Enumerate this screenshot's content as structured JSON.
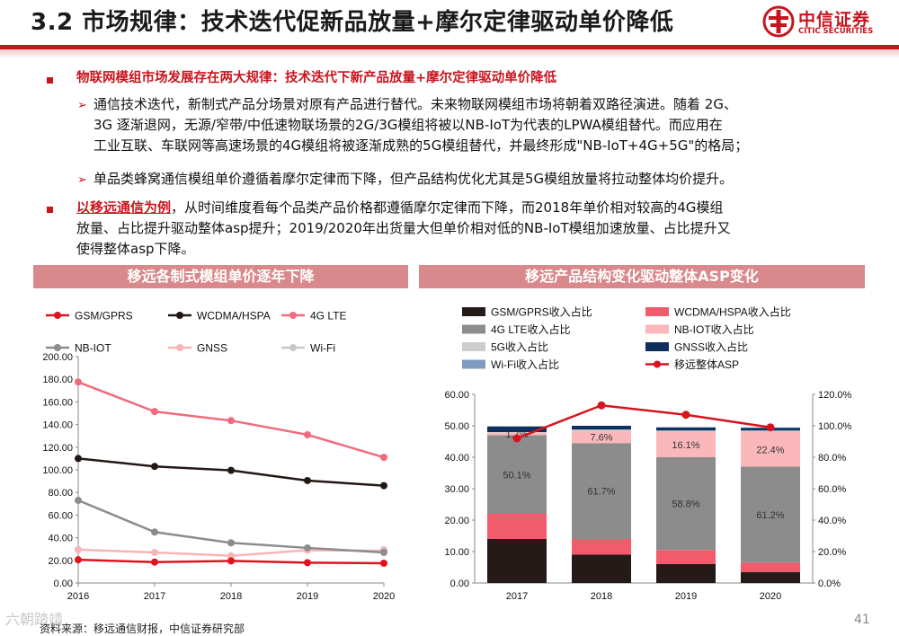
{
  "header": {
    "title": "3.2 市场规律：技术迭代促新品放量+摩尔定律驱动单价降低",
    "logo_cn": "中信证券",
    "logo_en": "CITIC SECURITIES"
  },
  "body": {
    "p1": "物联网模组市场发展存在两大规律：技术迭代下新产品放量+摩尔定律驱动单价降低",
    "p2_lines": [
      "通信技术迭代，新制式产品分场景对原有产品进行替代。未来物联网模组市场将朝着双路径演进。随着 2G、",
      "3G 逐渐退网，无源/窄带/中低速物联场景的2G/3G模组将被以NB-IoT为代表的LPWA模组替代。而应用在",
      "工业互联、车联网等高速场景的4G模组将被逐渐成熟的5G模组替代，并最终形成\"NB-IoT+4G+5G\"的格局；"
    ],
    "p3": "单品类蜂窝通信模组单价遵循着摩尔定律而下降，但产品结构优化尤其是5G模组放量将拉动整体均价提升。",
    "p4_highlight": "以移远通信为例",
    "p4_line1": "，从时间维度看每个品类产品价格都遵循摩尔定律而下降，而2018年单价相对较高的4G模组",
    "p4_line2": "放量、占比提升驱动整体asp提升；2019/2020年出货量大但单价相对低的NB-IoT模组加速放量、占比提升又",
    "p4_line3": "使得整体asp下降。"
  },
  "footer": {
    "source": "资料来源：移远通信财报，中信证券研究部",
    "page": "41",
    "watermark": "六朝踏靖"
  },
  "colors": {
    "brand_red": "#c9141e",
    "panel_head": "#d9888b"
  },
  "chart_data": [
    {
      "type": "line",
      "title": "移远各制式模组单价逐年下降",
      "x": [
        "2016",
        "2017",
        "2018",
        "2019",
        "2020"
      ],
      "ylim": [
        0,
        200
      ],
      "yticks": [
        "0.00",
        "20.00",
        "40.00",
        "60.00",
        "80.00",
        "100.00",
        "120.00",
        "140.00",
        "160.00",
        "180.00",
        "200.00"
      ],
      "series": [
        {
          "name": "GSM/GPRS",
          "color": "#e0121e",
          "values": [
            20.5,
            18.5,
            19.5,
            18,
            17.5
          ]
        },
        {
          "name": "WCDMA/HSPA",
          "color": "#231815",
          "values": [
            110,
            103,
            99.5,
            90.5,
            86
          ]
        },
        {
          "name": "4G LTE",
          "color": "#f06b7c",
          "values": [
            177.5,
            151.5,
            143.5,
            131,
            111
          ]
        },
        {
          "name": "NB-IOT",
          "color": "#8c8c8c",
          "values": [
            73,
            45,
            35.5,
            31,
            27
          ]
        },
        {
          "name": "GNSS",
          "color": "#f8b4b6",
          "values": [
            29.5,
            27,
            24,
            29,
            28.5
          ]
        },
        {
          "name": "Wi-Fi",
          "color": "#c8c8c8",
          "values": [
            null,
            null,
            null,
            null,
            29.5
          ]
        }
      ]
    },
    {
      "type": "bar",
      "title": "移远产品结构变化驱动整体ASP变化",
      "categories": [
        "2017",
        "2018",
        "2019",
        "2020"
      ],
      "ylim": [
        0,
        60
      ],
      "yticks": [
        "0.00",
        "10.00",
        "20.00",
        "30.00",
        "40.00",
        "50.00",
        "60.00"
      ],
      "y2lim": [
        0,
        120
      ],
      "y2ticks": [
        "0.0%",
        "20.0%",
        "40.0%",
        "60.0%",
        "80.0%",
        "100.0%",
        "120.0%"
      ],
      "series": [
        {
          "name": "GSM/GPRS收入占比",
          "color": "#261a18",
          "values": [
            14,
            9,
            6,
            3.5
          ]
        },
        {
          "name": "WCDMA/HSPA收入占比",
          "color": "#f25b6b",
          "values": [
            8,
            5,
            4.5,
            3
          ]
        },
        {
          "name": "4G LTE收入占比",
          "color": "#8c8c8c",
          "values": [
            25,
            30.5,
            29.5,
            30.5
          ]
        },
        {
          "name": "NB-IOT收入占比",
          "color": "#fbb8ba",
          "values": [
            0.8,
            3.8,
            8,
            11
          ]
        },
        {
          "name": "5G收入占比",
          "color": "#cdcdcd",
          "values": [
            0.2,
            0.5,
            0.5,
            0.5
          ]
        },
        {
          "name": "GNSS收入占比",
          "color": "#0f2f5c",
          "values": [
            1.8,
            1.2,
            1,
            0.8
          ]
        },
        {
          "name": "Wi-Fi收入占比",
          "color": "#7e9cbf",
          "values": [
            0,
            0,
            0,
            0.2
          ]
        }
      ],
      "line_series": {
        "name": "移远整体ASP",
        "color": "#d7141e",
        "values": [
          92,
          113,
          107,
          99
        ]
      },
      "data_labels": [
        {
          "category": "2017",
          "series": "4G LTE收入占比",
          "text": "50.1%"
        },
        {
          "category": "2017",
          "series": "NB-IOT收入占比",
          "text": "1.7%"
        },
        {
          "category": "2018",
          "series": "4G LTE收入占比",
          "text": "61.7%"
        },
        {
          "category": "2018",
          "series": "NB-IOT收入占比",
          "text": "7.6%"
        },
        {
          "category": "2019",
          "series": "4G LTE收入占比",
          "text": "58.8%"
        },
        {
          "category": "2019",
          "series": "NB-IOT收入占比",
          "text": "16.1%"
        },
        {
          "category": "2020",
          "series": "4G LTE收入占比",
          "text": "61.2%"
        },
        {
          "category": "2020",
          "series": "NB-IOT收入占比",
          "text": "22.4%"
        }
      ]
    }
  ]
}
